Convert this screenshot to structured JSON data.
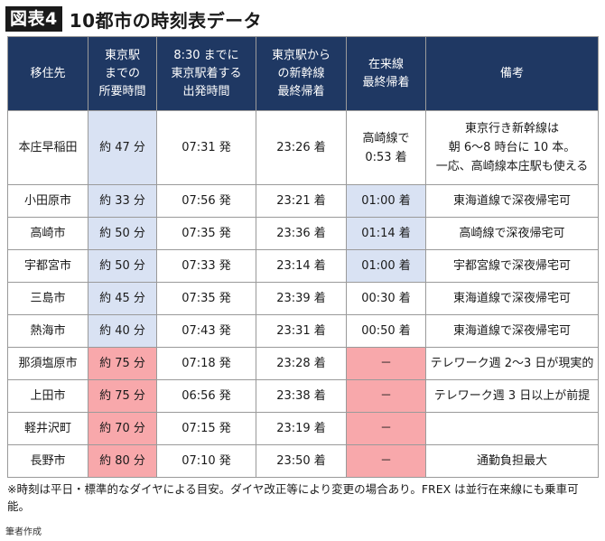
{
  "badge": "図表4",
  "title": "10都市の時刻表データ",
  "headers": [
    [
      "移住先"
    ],
    [
      "東京駅",
      "までの",
      "所要時間"
    ],
    [
      "8:30 までに",
      "東京駅着する",
      "出発時間"
    ],
    [
      "東京駅から",
      "の新幹線",
      "最終帰着"
    ],
    [
      "在来線",
      "最終帰着"
    ],
    [
      "備考"
    ]
  ],
  "rows": [
    {
      "city": "本庄早稲田",
      "travel": "約 47 分",
      "departure": "07:31 発",
      "last_shinkansen": "23:26 着",
      "last_local": [
        "高崎線で",
        "0:53 着"
      ],
      "note": [
        "東京行き新幹線は",
        "朝 6～8 時台に 10 本。",
        "一応、高崎線本庄駅も使える"
      ]
    },
    {
      "city": "小田原市",
      "travel": "約 33 分",
      "departure": "07:56 発",
      "last_shinkansen": "23:21 着",
      "last_local": [
        "01:00 着"
      ],
      "note": [
        "東海道線で深夜帰宅可"
      ]
    },
    {
      "city": "高崎市",
      "travel": "約 50 分",
      "departure": "07:35 発",
      "last_shinkansen": "23:36 着",
      "last_local": [
        "01:14 着"
      ],
      "note": [
        "高崎線で深夜帰宅可"
      ]
    },
    {
      "city": "宇都宮市",
      "travel": "約 50 分",
      "departure": "07:33 発",
      "last_shinkansen": "23:14 着",
      "last_local": [
        "01:00 着"
      ],
      "note": [
        "宇都宮線で深夜帰宅可"
      ]
    },
    {
      "city": "三島市",
      "travel": "約 45 分",
      "departure": "07:35 発",
      "last_shinkansen": "23:39 着",
      "last_local": [
        "00:30 着"
      ],
      "note": [
        "東海道線で深夜帰宅可"
      ]
    },
    {
      "city": "熱海市",
      "travel": "約 40 分",
      "departure": "07:43 発",
      "last_shinkansen": "23:31 着",
      "last_local": [
        "00:50 着"
      ],
      "note": [
        "東海道線で深夜帰宅可"
      ]
    },
    {
      "city": "那須塩原市",
      "travel": "約 75 分",
      "departure": "07:18 発",
      "last_shinkansen": "23:28 着",
      "last_local": [
        "－"
      ],
      "note": [
        "テレワーク週 2～3 日が現実的"
      ]
    },
    {
      "city": "上田市",
      "travel": "約 75 分",
      "departure": "06:56 発",
      "last_shinkansen": "23:38 着",
      "last_local": [
        "－"
      ],
      "note": [
        "テレワーク週 3 日以上が前提"
      ]
    },
    {
      "city": "軽井沢町",
      "travel": "約 70 分",
      "departure": "07:15 発",
      "last_shinkansen": "23:19 着",
      "last_local": [
        "－"
      ],
      "note": [
        ""
      ]
    },
    {
      "city": "長野市",
      "travel": "約 80 分",
      "departure": "07:10 発",
      "last_shinkansen": "23:50 着",
      "last_local": [
        "－"
      ],
      "note": [
        "通勤負担最大"
      ]
    }
  ],
  "colors": {
    "header": "#1f3863",
    "blue": "#d9e2f3",
    "red": "#f8a8ab"
  },
  "footnote": "※時刻は平日・標準的なダイヤによる目安。ダイヤ改正等により変更の場合あり。FREX は並行在来線にも乗車可能。",
  "source": "筆者作成"
}
